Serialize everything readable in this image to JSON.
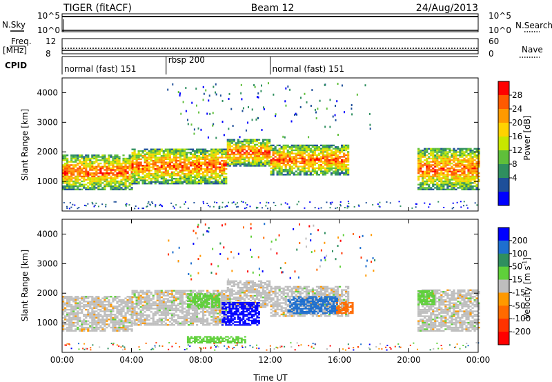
{
  "header": {
    "station": "TIGER (fitACF)",
    "beam": "Beam 12",
    "date": "24/Aug/2013"
  },
  "panels": {
    "nsky": {
      "label": "N.Sky",
      "ticks": [
        "10^5",
        "10^0"
      ],
      "right_label": "N.Search",
      "right_ticks": [
        "10^5",
        "10^0"
      ]
    },
    "freq": {
      "label": "Freq.",
      "unit": "[MHz]",
      "ticks": [
        "12",
        "8"
      ],
      "right_label": "Nave",
      "right_ticks": [
        "60",
        "0"
      ]
    },
    "cpid": {
      "label": "CPID"
    }
  },
  "chart_data": [
    {
      "type": "table",
      "name": "cpid",
      "segments": [
        {
          "label": "normal (fast) 151",
          "start_hour": 0,
          "end_hour": 6
        },
        {
          "label": "rbsp 200",
          "start_hour": 6,
          "end_hour": 12
        },
        {
          "label": "normal (fast) 151",
          "start_hour": 12,
          "end_hour": 24
        }
      ]
    },
    {
      "type": "heatmap",
      "name": "power",
      "xlabel": "",
      "ylabel": "Slant Range [km]",
      "xlim": [
        0,
        24
      ],
      "ylim": [
        0,
        4500
      ],
      "yticks": [
        1000,
        2000,
        3000,
        4000
      ],
      "colorbar": {
        "label": "Power [dB]",
        "ticks": [
          28,
          24,
          20,
          16,
          12,
          8,
          4
        ],
        "colors": [
          "#ff0000",
          "#ff5a00",
          "#ff9900",
          "#ffd200",
          "#c8e600",
          "#5fbf3a",
          "#2f8f5f",
          "#1e4f99",
          "#0000ff"
        ]
      },
      "bands": [
        {
          "start_hour": 0.0,
          "end_hour": 4.0,
          "range_low": 700,
          "range_high": 1900,
          "level": "high"
        },
        {
          "start_hour": 4.0,
          "end_hour": 9.5,
          "range_low": 900,
          "range_high": 2100,
          "level": "high"
        },
        {
          "start_hour": 9.5,
          "end_hour": 12.0,
          "range_low": 1500,
          "range_high": 2400,
          "level": "high"
        },
        {
          "start_hour": 12.0,
          "end_hour": 16.5,
          "range_low": 1200,
          "range_high": 2200,
          "level": "high"
        },
        {
          "start_hour": 20.5,
          "end_hour": 24.0,
          "range_low": 700,
          "range_high": 2100,
          "level": "high"
        }
      ]
    },
    {
      "type": "heatmap",
      "name": "velocity",
      "xlabel": "Time UT",
      "ylabel": "Slant Range [km]",
      "xlim": [
        0,
        24
      ],
      "ylim": [
        0,
        4500
      ],
      "xticks": [
        "00:00",
        "04:00",
        "08:00",
        "12:00",
        "16:00",
        "20:00",
        "00:00"
      ],
      "yticks": [
        1000,
        2000,
        3000,
        4000
      ],
      "colorbar": {
        "label": "Velocity [m s",
        "unit_suffix": "-1",
        "ticks": [
          200,
          100,
          50,
          15,
          -15,
          -50,
          -100,
          -200
        ],
        "colors": [
          "#0000ff",
          "#1e6fcf",
          "#2f8f5f",
          "#5fd03a",
          "#bebebe",
          "#ff9900",
          "#ff6a00",
          "#ff3300",
          "#ff0000"
        ]
      }
    }
  ]
}
